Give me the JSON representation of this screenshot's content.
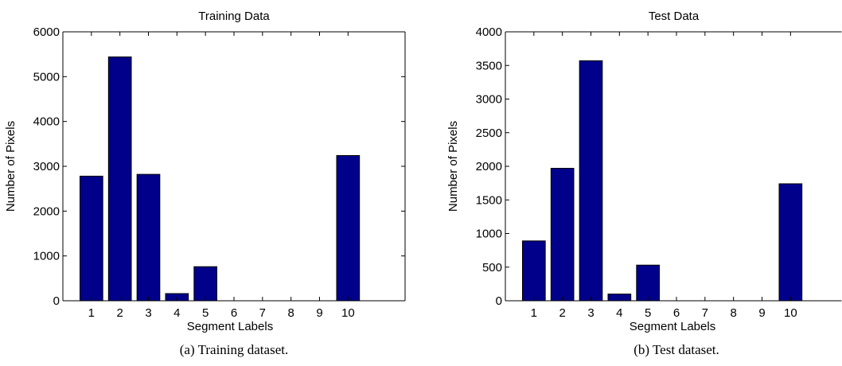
{
  "chart_data": [
    {
      "type": "bar",
      "title": "Training Data",
      "xlabel": "Segment Labels",
      "ylabel": "Number of Pixels",
      "categories": [
        "1",
        "2",
        "3",
        "4",
        "5",
        "6",
        "7",
        "8",
        "9",
        "10"
      ],
      "values": [
        2780,
        5440,
        2820,
        160,
        760,
        0,
        0,
        0,
        0,
        3240
      ],
      "ylim": [
        0,
        6000
      ],
      "yticks": [
        0,
        1000,
        2000,
        3000,
        4000,
        5000,
        6000
      ],
      "xlim": [
        0,
        12
      ],
      "caption": "(a) Training dataset.",
      "bar_color": "#00008b",
      "grid": false
    },
    {
      "type": "bar",
      "title": "Test Data",
      "xlabel": "Segment Labels",
      "ylabel": "Number of Pixels",
      "categories": [
        "1",
        "2",
        "3",
        "4",
        "5",
        "6",
        "7",
        "8",
        "9",
        "10"
      ],
      "values": [
        890,
        1970,
        3570,
        100,
        530,
        0,
        0,
        0,
        0,
        1740
      ],
      "ylim": [
        0,
        4000
      ],
      "yticks": [
        0,
        500,
        1000,
        1500,
        2000,
        2500,
        3000,
        3500,
        4000
      ],
      "xlim": [
        0,
        12
      ],
      "caption": "(b) Test dataset.",
      "bar_color": "#00008b",
      "grid": false
    }
  ]
}
